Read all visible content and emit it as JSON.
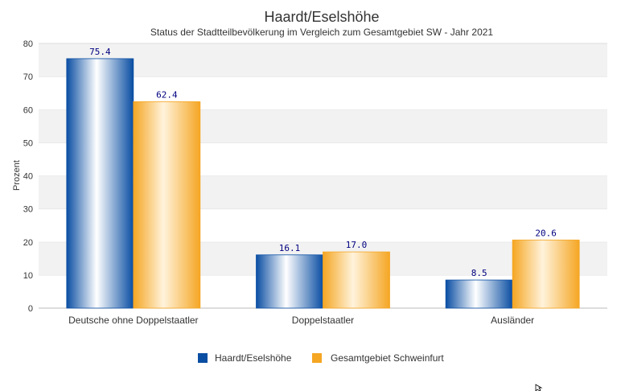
{
  "chart_data": {
    "type": "bar",
    "title": "Haardt/Eselshöhe",
    "subtitle": "Status der Stadtteilbevölkerung im Vergleich zum Gesamtgebiet SW - Jahr 2021",
    "xlabel": "",
    "ylabel": "Prozent",
    "ylim": [
      0,
      80
    ],
    "yticks": [
      0,
      10,
      20,
      30,
      40,
      50,
      60,
      70,
      80
    ],
    "categories": [
      "Deutsche ohne Doppelstaatler",
      "Doppelstaatler",
      "Ausländer"
    ],
    "series": [
      {
        "name": "Haardt/Eselshöhe",
        "values": [
          75.4,
          16.1,
          8.5
        ],
        "value_labels": [
          "75.4",
          "16.1",
          "8.5"
        ],
        "color": "#0a4ea3"
      },
      {
        "name": "Gesamtgebiet Schweinfurt",
        "values": [
          62.4,
          17.0,
          20.6
        ],
        "value_labels": [
          "62.4",
          "17.0",
          "20.6"
        ],
        "color": "#f5a623"
      }
    ],
    "grid": true,
    "legend_position": "bottom"
  },
  "colors": {
    "band_light": "#f2f2f2",
    "band_white": "#ffffff",
    "axis": "#cccccc"
  }
}
